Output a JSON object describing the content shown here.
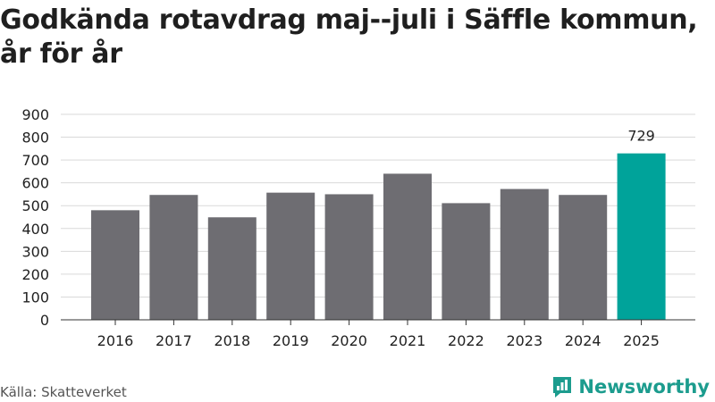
{
  "title": "Godkända rotavdrag maj--juli i Säffle kommun, år för år",
  "source": "Källa: Skatteverket",
  "brand": "Newsworthy",
  "colors": {
    "bar": "#6e6d72",
    "highlight": "#00a39a",
    "grid": "#d9d9d9",
    "axis": "#333333",
    "brand": "#1c9c8e"
  },
  "chart_data": {
    "type": "bar",
    "categories": [
      "2016",
      "2017",
      "2018",
      "2019",
      "2020",
      "2021",
      "2022",
      "2023",
      "2024",
      "2025"
    ],
    "values": [
      480,
      547,
      449,
      557,
      550,
      640,
      511,
      573,
      547,
      729
    ],
    "ylim": [
      0,
      900
    ],
    "yticks": [
      0,
      100,
      200,
      300,
      400,
      500,
      600,
      700,
      800,
      900
    ],
    "grid": true,
    "highlight_index": 9,
    "data_labels": [
      {
        "index": 9,
        "text": "729"
      }
    ]
  }
}
